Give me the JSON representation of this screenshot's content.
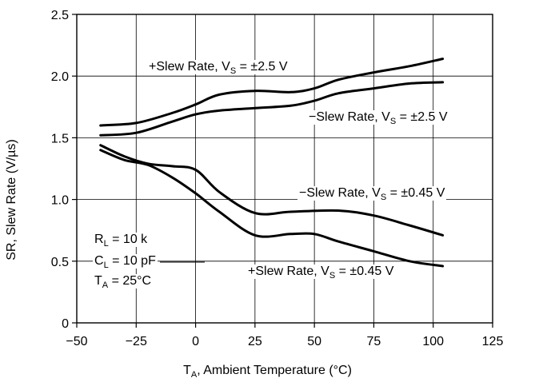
{
  "chart_data": {
    "type": "line",
    "title": "",
    "xlabel": {
      "main": "T",
      "sub": "A",
      "rest": ", Ambient Temperature (°C)"
    },
    "ylabel": "SR, Slew Rate (V/µs)",
    "xlim": [
      -50,
      125
    ],
    "ylim": [
      0,
      2.5
    ],
    "xticks": [
      "−50",
      "−25",
      "0",
      "25",
      "50",
      "75",
      "100",
      "125"
    ],
    "xtick_values": [
      -50,
      -25,
      0,
      25,
      50,
      75,
      100,
      125
    ],
    "yticks": [
      "0",
      "0.5",
      "1.0",
      "1.5",
      "2.0",
      "2.5"
    ],
    "ytick_values": [
      0,
      0.5,
      1.0,
      1.5,
      2.0,
      2.5
    ],
    "grid": true,
    "series": [
      {
        "name": "+Slew Rate, V_S = ±2.5 V",
        "label": {
          "pre": "+Slew Rate, V",
          "sub": "S",
          "post": " = ±2.5 V"
        },
        "x": [
          -40,
          -25,
          -10,
          0,
          10,
          25,
          40,
          50,
          60,
          75,
          90,
          104
        ],
        "y": [
          1.6,
          1.62,
          1.7,
          1.77,
          1.85,
          1.88,
          1.87,
          1.9,
          1.97,
          2.03,
          2.08,
          2.14
        ]
      },
      {
        "name": "−Slew Rate, V_S = ±2.5 V",
        "label": {
          "pre": "−Slew Rate, V",
          "sub": "S",
          "post": " = ±2.5 V"
        },
        "x": [
          -40,
          -25,
          -10,
          0,
          10,
          25,
          40,
          50,
          60,
          75,
          90,
          104
        ],
        "y": [
          1.52,
          1.54,
          1.63,
          1.69,
          1.72,
          1.74,
          1.76,
          1.8,
          1.86,
          1.9,
          1.94,
          1.95
        ]
      },
      {
        "name": "−Slew Rate, V_S = ±0.45 V",
        "label": {
          "pre": "−Slew Rate, V",
          "sub": "S",
          "post": " = ±0.45 V"
        },
        "x": [
          -40,
          -30,
          -20,
          -10,
          0,
          10,
          25,
          40,
          60,
          75,
          90,
          104
        ],
        "y": [
          1.44,
          1.35,
          1.29,
          1.27,
          1.24,
          1.06,
          0.89,
          0.9,
          0.91,
          0.87,
          0.79,
          0.71
        ]
      },
      {
        "name": "+Slew Rate, V_S = ±0.45 V",
        "label": {
          "pre": "+Slew Rate, V",
          "sub": "S",
          "post": " = ±0.45 V"
        },
        "x": [
          -40,
          -30,
          -20,
          -10,
          0,
          10,
          25,
          40,
          50,
          60,
          75,
          90,
          104
        ],
        "y": [
          1.4,
          1.32,
          1.28,
          1.18,
          1.05,
          0.9,
          0.71,
          0.72,
          0.72,
          0.66,
          0.58,
          0.5,
          0.46
        ]
      }
    ],
    "conditions": [
      {
        "pre": "R",
        "sub": "L",
        "post": " =  10 k"
      },
      {
        "pre": "C",
        "sub": "L",
        "post": " = 10 pF"
      },
      {
        "pre": "T",
        "sub": "A",
        "post": " = 25°C"
      }
    ]
  }
}
